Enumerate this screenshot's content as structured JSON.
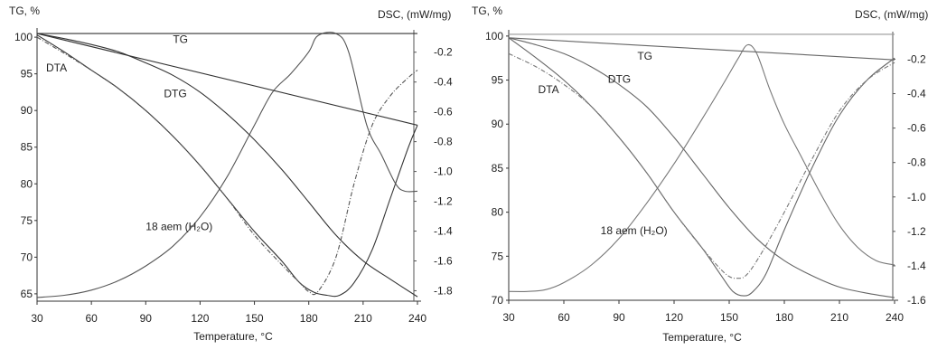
{
  "chart_data": [
    {
      "type": "line",
      "left_axis_label": "TG, %",
      "right_axis_label": "DSC, (mW/mg)",
      "xlabel": "Temperature, °C",
      "xlim": [
        30,
        240
      ],
      "ylim_left": [
        64,
        101
      ],
      "ylim_right": [
        -1.87,
        -0.05
      ],
      "x_ticks": [
        "30",
        "60",
        "90",
        "120",
        "150",
        "180",
        "210",
        "240"
      ],
      "y_left_ticks": [
        "100",
        "95",
        "90",
        "85",
        "80",
        "75",
        "70",
        "65"
      ],
      "y_right_ticks": [
        "-0.2",
        "-0.4",
        "-0.6",
        "-0.8",
        "-1.0",
        "-1.2",
        "-1.4",
        "-1.6",
        "-1.8"
      ],
      "annotations": [
        {
          "text": "TG",
          "x": 105,
          "y": 99.2
        },
        {
          "text": "DTA",
          "x": 35,
          "y": 95.3
        },
        {
          "text": "DTG",
          "x": 100,
          "y": 91.8
        },
        {
          "text": "18 aem (H₂O)",
          "x": 90,
          "y": 73.7
        }
      ],
      "series": [
        {
          "name": "TG",
          "color": "#333333",
          "dash": "",
          "x": [
            30,
            45,
            60,
            75,
            90,
            105,
            120,
            135,
            150,
            165,
            180,
            195,
            210,
            225,
            240
          ],
          "y": [
            100.5,
            99.8,
            99,
            98,
            96.5,
            94.8,
            92.5,
            89.5,
            86,
            82,
            77.5,
            73,
            69.5,
            67,
            64.6
          ]
        },
        {
          "name": "DTA",
          "color": "#333333",
          "dash": "",
          "x": [
            30,
            45,
            60,
            75,
            90,
            105,
            120,
            135,
            150,
            165,
            175,
            183,
            190,
            197,
            205,
            215,
            225,
            235,
            240
          ],
          "y": [
            100.3,
            98,
            95.5,
            93,
            90,
            86.5,
            82.5,
            78,
            73.5,
            69.5,
            66.5,
            65.2,
            64.8,
            64.8,
            66.5,
            71,
            78,
            85,
            88
          ]
        },
        {
          "name": "DTG",
          "color": "#555555",
          "dash": "5,2,1,2",
          "x": [
            30,
            45,
            60,
            75,
            90,
            105,
            120,
            135,
            150,
            165,
            175,
            180,
            185,
            195,
            205,
            215,
            225,
            235,
            240
          ],
          "y": [
            100,
            97.8,
            95.5,
            93,
            90,
            86.5,
            82.5,
            78,
            73,
            69,
            66.5,
            65.3,
            65.3,
            70,
            80,
            88,
            92,
            94.5,
            95.5
          ]
        },
        {
          "name": "18 aem (H₂O)",
          "color": "#555555",
          "dash": "",
          "x": [
            30,
            45,
            60,
            75,
            90,
            105,
            120,
            135,
            150,
            160,
            170,
            180,
            185,
            195,
            202,
            212,
            220,
            228,
            233,
            240
          ],
          "y": [
            64.5,
            64.8,
            65.5,
            66.8,
            68.8,
            71.5,
            75.5,
            81,
            88,
            92.5,
            95,
            98,
            100.2,
            100.5,
            98,
            88,
            84,
            80,
            79,
            79
          ]
        },
        {
          "name": "",
          "color": "#333333",
          "dash": "",
          "x": [
            30,
            240
          ],
          "y": [
            100.5,
            88
          ]
        },
        {
          "name": "",
          "color": "#333333",
          "dash": "",
          "x": [
            30,
            240
          ],
          "y": [
            100.5,
            100.5
          ]
        }
      ]
    },
    {
      "type": "line",
      "left_axis_label": "TG, %",
      "right_axis_label": "DSC, (mW/mg)",
      "xlabel": "Temperature, °C",
      "xlim": [
        30,
        240
      ],
      "ylim_left": [
        70,
        100.5
      ],
      "ylim_right": [
        -1.6,
        -0.04
      ],
      "x_ticks": [
        "30",
        "60",
        "90",
        "120",
        "150",
        "180",
        "210",
        "240"
      ],
      "y_left_ticks": [
        "100",
        "95",
        "90",
        "85",
        "80",
        "75",
        "70"
      ],
      "y_right_ticks": [
        "-0.2",
        "-0.4",
        "-0.6",
        "-0.8",
        "-1.0",
        "-1.2",
        "-1.4",
        "-1.6"
      ],
      "annotations": [
        {
          "text": "TG",
          "x": 100,
          "y": 97.3
        },
        {
          "text": "DTA",
          "x": 46,
          "y": 93.5
        },
        {
          "text": "DTG",
          "x": 84,
          "y": 94.7
        },
        {
          "text": "18 aem (H₂O)",
          "x": 80,
          "y": 77.5
        }
      ],
      "series": [
        {
          "name": "TG",
          "color": "#666666",
          "dash": "",
          "x": [
            30,
            45,
            60,
            75,
            90,
            105,
            120,
            135,
            150,
            165,
            180,
            195,
            210,
            225,
            240
          ],
          "y": [
            99.8,
            99,
            98,
            96.5,
            94.5,
            92,
            88.5,
            84.5,
            80.5,
            77,
            74.5,
            72.8,
            71.5,
            70.8,
            70.3
          ]
        },
        {
          "name": "DTA",
          "color": "#666666",
          "dash": "",
          "x": [
            30,
            45,
            60,
            75,
            90,
            105,
            120,
            135,
            145,
            152,
            158,
            163,
            170,
            180,
            195,
            210,
            225,
            240
          ],
          "y": [
            99.8,
            97.5,
            95,
            92,
            88.5,
            84.5,
            80,
            76,
            73,
            71,
            70.5,
            71,
            73,
            78,
            85,
            91,
            95,
            97.5
          ]
        },
        {
          "name": "DTG",
          "color": "#777777",
          "dash": "5,2,1,2",
          "x": [
            30,
            45,
            60,
            75,
            90,
            105,
            120,
            135,
            148,
            155,
            160,
            168,
            180,
            195,
            210,
            225,
            240
          ],
          "y": [
            98,
            96.5,
            94.5,
            92,
            88.5,
            84.5,
            80,
            76,
            73,
            72.5,
            73,
            75.5,
            80,
            86,
            91.5,
            95,
            97
          ]
        },
        {
          "name": "18 aem (H₂O)",
          "color": "#777777",
          "dash": "",
          "x": [
            30,
            40,
            50,
            60,
            75,
            90,
            105,
            120,
            135,
            148,
            155,
            160,
            165,
            172,
            180,
            190,
            200,
            210,
            220,
            230,
            240
          ],
          "y": [
            71,
            71,
            71.2,
            72,
            74,
            77,
            81,
            85.5,
            90.5,
            95,
            97.5,
            99,
            98,
            94,
            90,
            86,
            82,
            78.5,
            76,
            74.5,
            74
          ]
        },
        {
          "name": "",
          "color": "#666666",
          "dash": "",
          "x": [
            30,
            240
          ],
          "y": [
            99.8,
            97.3
          ]
        },
        {
          "name": "",
          "color": "#999999",
          "dash": "",
          "x": [
            30,
            240
          ],
          "y": [
            100.2,
            100.2
          ]
        }
      ]
    }
  ]
}
